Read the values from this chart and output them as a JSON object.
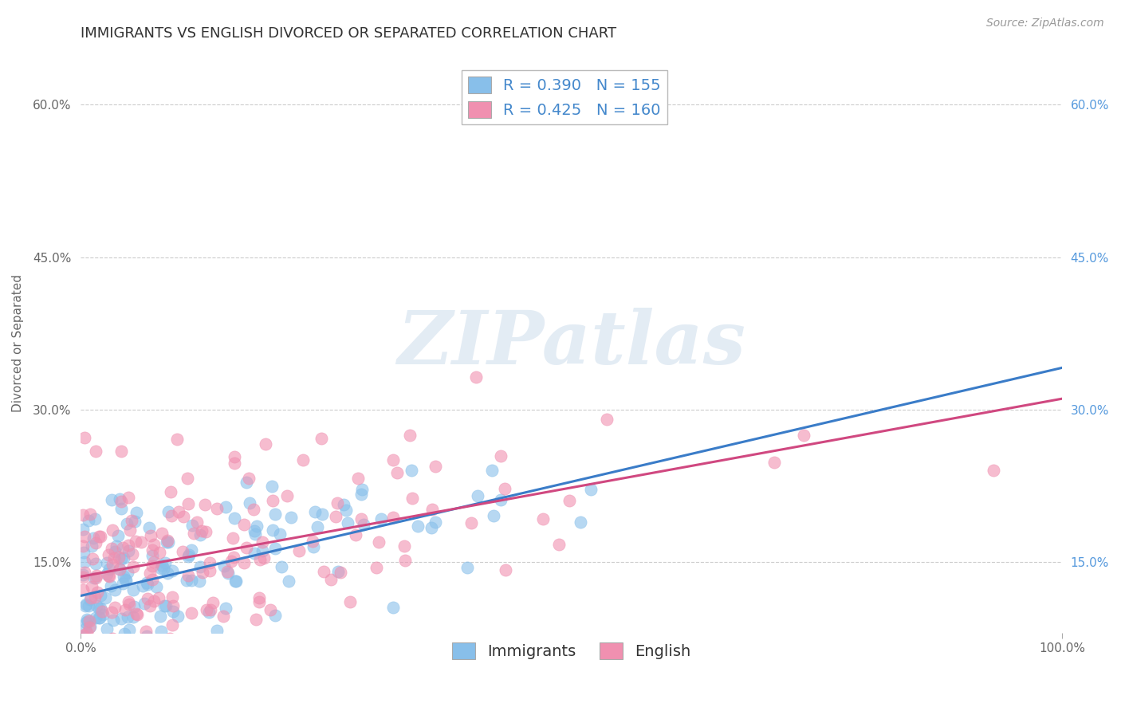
{
  "title": "IMMIGRANTS VS ENGLISH DIVORCED OR SEPARATED CORRELATION CHART",
  "source_text": "Source: ZipAtlas.com",
  "ylabel": "Divorced or Separated",
  "legend_label1": "R = 0.390   N = 155",
  "legend_label2": "R = 0.425   N = 160",
  "legend_bottom1": "Immigrants",
  "legend_bottom2": "English",
  "color_immigrants": "#88BFEA",
  "color_english": "#F090B0",
  "color_trendline_immigrants": "#3A7CC8",
  "color_trendline_english": "#D04880",
  "watermark_color": "#D0D8E8",
  "watermark_text": "ZIPatlas",
  "R1": 0.39,
  "N1": 155,
  "R2": 0.425,
  "N2": 160,
  "background_color": "#FFFFFF",
  "grid_color": "#CCCCCC",
  "title_color": "#333333",
  "title_fontsize": 13,
  "axis_label_fontsize": 11,
  "tick_fontsize": 11,
  "legend_fontsize": 14,
  "source_fontsize": 10,
  "y_ticks": [
    15,
    30,
    45,
    60
  ],
  "ylim_low": 8,
  "ylim_high": 65,
  "xlim_low": 0,
  "xlim_high": 100
}
